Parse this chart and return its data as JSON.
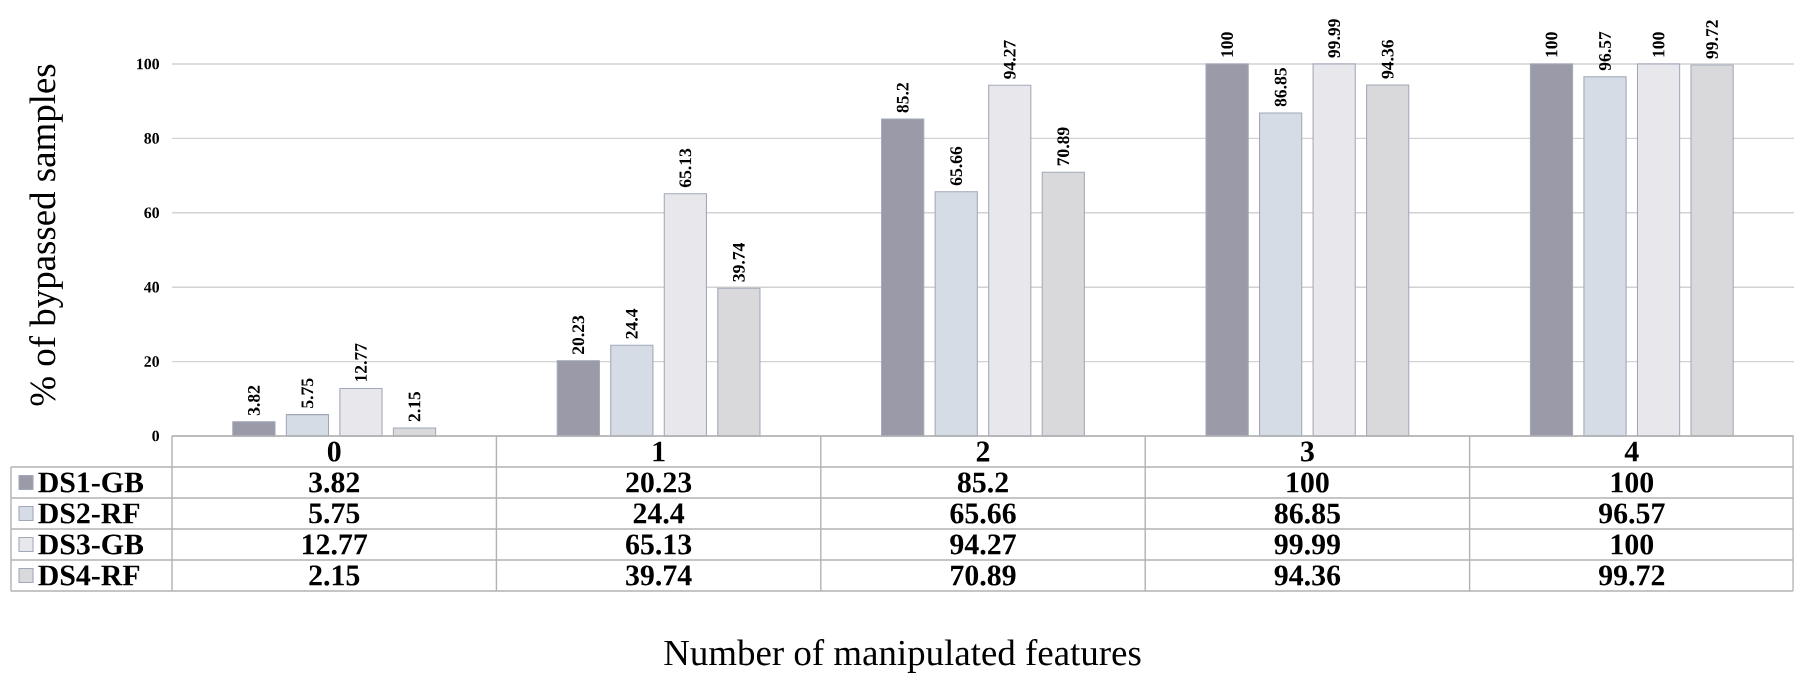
{
  "chart_data": {
    "type": "bar",
    "xlabel": "Number of manipulated features",
    "ylabel": "% of bypassed samples",
    "categories": [
      "0",
      "1",
      "2",
      "3",
      "4"
    ],
    "series": [
      {
        "name": "DS1-GB",
        "color": "#9a9aa8",
        "values": [
          3.82,
          20.23,
          85.2,
          100,
          100
        ],
        "value_labels": [
          "3.82",
          "20.23",
          "85.2",
          "100",
          "100"
        ]
      },
      {
        "name": "DS2-RF",
        "color": "#d6dce6",
        "values": [
          5.75,
          24.4,
          65.66,
          86.85,
          96.57
        ],
        "value_labels": [
          "5.75",
          "24.4",
          "65.66",
          "86.85",
          "96.57"
        ]
      },
      {
        "name": "DS3-GB",
        "color": "#e8e8ec",
        "values": [
          12.77,
          65.13,
          94.27,
          99.99,
          100
        ],
        "value_labels": [
          "12.77",
          "65.13",
          "94.27",
          "99.99",
          "100"
        ]
      },
      {
        "name": "DS4-RF",
        "color": "#d9d9dc",
        "values": [
          2.15,
          39.74,
          70.89,
          94.36,
          99.72
        ],
        "value_labels": [
          "2.15",
          "39.74",
          "70.89",
          "94.36",
          "99.72"
        ]
      }
    ],
    "ylim": [
      0,
      100
    ],
    "yticks": [
      0,
      20,
      40,
      60,
      80,
      100
    ],
    "grid": "y",
    "data_labels": true,
    "legend": "bottom left",
    "annotations": [
      "3.82",
      "20.23",
      "85.2",
      "100",
      "100",
      "5.75",
      "24.4",
      "65.66",
      "86.85",
      "96.57",
      "12.77",
      "65.13",
      "94.27",
      "99.99",
      "100",
      "2.15",
      "39.74",
      "70.89",
      "94.36",
      "99.72"
    ]
  }
}
